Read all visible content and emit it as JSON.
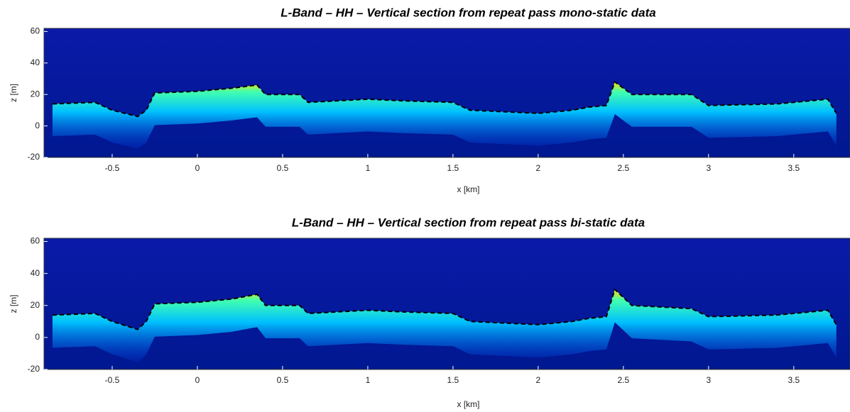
{
  "chart_data": [
    {
      "type": "heatmap",
      "title": "L-Band – HH – Vertical section from repeat pass mono-static data",
      "x_label": "x [km]",
      "y_label": "z [m]",
      "xlim": [
        -0.9,
        3.83
      ],
      "ylim": [
        -20,
        62
      ],
      "xticks": [
        -0.5,
        0,
        0.5,
        1,
        1.5,
        2,
        2.5,
        3,
        3.5
      ],
      "yticks": [
        -20,
        0,
        20,
        40,
        60
      ],
      "x": [
        -0.85,
        -0.6,
        -0.5,
        -0.35,
        -0.3,
        -0.25,
        0,
        0.2,
        0.35,
        0.4,
        0.6,
        0.65,
        1,
        1.2,
        1.5,
        1.6,
        2,
        2.2,
        2.3,
        2.4,
        2.45,
        2.55,
        2.9,
        3,
        3.4,
        3.7,
        3.75
      ],
      "values": [
        14,
        15,
        10,
        6,
        10,
        21,
        22,
        24,
        26,
        20,
        20,
        15,
        17,
        16,
        15,
        10,
        8,
        10,
        12,
        13,
        28,
        20,
        20,
        13,
        14,
        17,
        8
      ],
      "color": "#000000"
    },
    {
      "type": "heatmap",
      "title": "L-Band – HH – Vertical section from repeat pass bi-static data",
      "x_label": "x [km]",
      "y_label": "z [m]",
      "xlim": [
        -0.9,
        3.83
      ],
      "ylim": [
        -20,
        62
      ],
      "xticks": [
        -0.5,
        0,
        0.5,
        1,
        1.5,
        2,
        2.5,
        3,
        3.5
      ],
      "yticks": [
        -20,
        0,
        20,
        40,
        60
      ],
      "x": [
        -0.85,
        -0.6,
        -0.5,
        -0.35,
        -0.3,
        -0.25,
        0,
        0.2,
        0.35,
        0.4,
        0.6,
        0.65,
        1,
        1.2,
        1.5,
        1.6,
        2,
        2.2,
        2.3,
        2.4,
        2.45,
        2.55,
        2.9,
        3,
        3.4,
        3.7,
        3.75
      ],
      "values": [
        14,
        15,
        10,
        5,
        10,
        21,
        22,
        24,
        27,
        20,
        20,
        15,
        17,
        16,
        15,
        10,
        8,
        10,
        12,
        13,
        30,
        20,
        18,
        13,
        14,
        17,
        8
      ],
      "color": "#000000"
    }
  ]
}
